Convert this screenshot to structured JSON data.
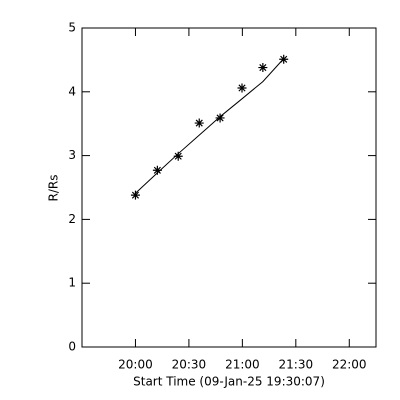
{
  "chart_data": {
    "type": "scatter",
    "xlabel": "Start Time (09-Jan-25 19:30:07)",
    "ylabel": "R/Rs",
    "xlim": [
      1170,
      1335
    ],
    "ylim": [
      0,
      5
    ],
    "xticks": [
      {
        "value": 1200,
        "label": "20:00"
      },
      {
        "value": 1230,
        "label": "20:30"
      },
      {
        "value": 1260,
        "label": "21:00"
      },
      {
        "value": 1290,
        "label": "21:30"
      },
      {
        "value": 1320,
        "label": "22:00"
      }
    ],
    "yticks": [
      0,
      1,
      2,
      3,
      4,
      5
    ],
    "series": [
      {
        "color": "#000000",
        "marker": "asterisk",
        "x": [
          1200,
          1212.3,
          1224,
          1235.8,
          1247.5,
          1259.8,
          1271.5,
          1283.2
        ],
        "values": [
          2.38,
          2.77,
          2.99,
          3.51,
          3.59,
          4.06,
          4.38,
          4.51
        ]
      },
      {
        "color": "#000000",
        "marker": "line",
        "x": [
          1200,
          1212.3,
          1224,
          1235.8,
          1247.5,
          1259.8,
          1271.5,
          1283.2
        ],
        "values": [
          2.41,
          2.73,
          3.03,
          3.32,
          3.61,
          3.89,
          4.16,
          4.52
        ]
      }
    ]
  }
}
